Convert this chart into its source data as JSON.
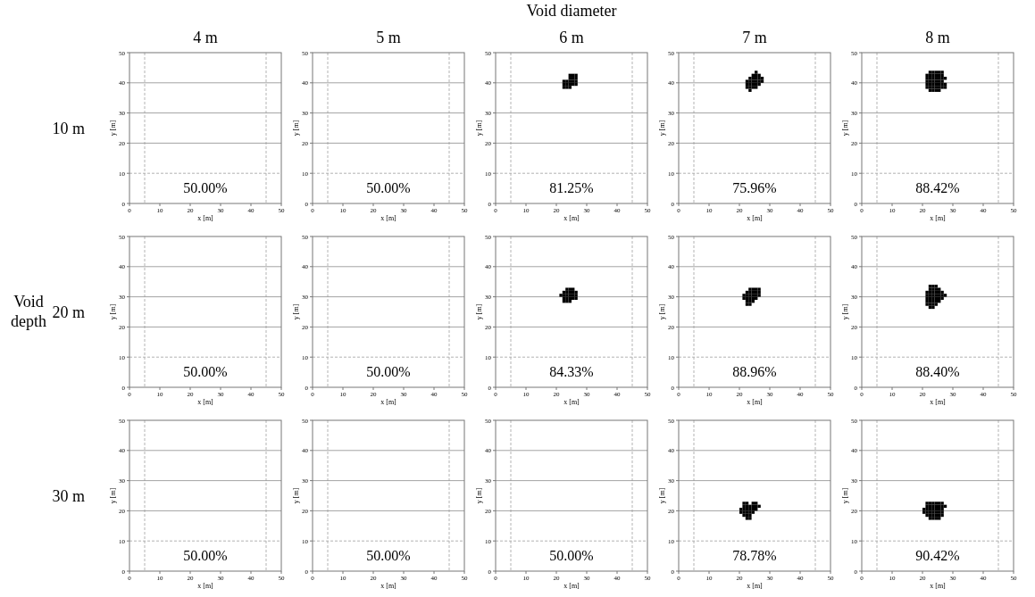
{
  "chart_data": [
    {
      "type": "scatter",
      "title": "4 m",
      "xlabel": "x [m]",
      "ylabel": "y [m]",
      "xlim": [
        0,
        50
      ],
      "ylim": [
        0,
        50
      ],
      "xticks": [
        0,
        10,
        20,
        30,
        40,
        50
      ],
      "yticks": [
        0,
        10,
        20,
        30,
        40,
        50
      ],
      "marker": "square",
      "annotations": [
        "50.00%",
        "10 m"
      ],
      "ref_lines": [
        {
          "axis": "x",
          "value": 5,
          "color": "#aaaaaa",
          "line_style": "dashed"
        },
        {
          "axis": "x",
          "value": 45,
          "color": "#aaaaaa",
          "line_style": "dashed"
        },
        {
          "axis": "y",
          "value": 10,
          "color": "#aaaaaa",
          "line_style": "dashed"
        },
        {
          "axis": "y",
          "value": 20,
          "color": "#999999",
          "line_style": "solid"
        },
        {
          "axis": "y",
          "value": 30,
          "color": "#999999",
          "line_style": "solid"
        },
        {
          "axis": "y",
          "value": 40,
          "color": "#999999",
          "line_style": "solid"
        }
      ]
    },
    {
      "type": "scatter",
      "title": "5 m",
      "xlabel": "x [m]",
      "ylabel": "y [m]",
      "xlim": [
        0,
        50
      ],
      "ylim": [
        0,
        50
      ],
      "xticks": [
        0,
        10,
        20,
        30,
        40,
        50
      ],
      "yticks": [
        0,
        10,
        20,
        30,
        40,
        50
      ],
      "marker": "square",
      "annotations": [
        "50.00%"
      ],
      "ref_lines": [
        {
          "axis": "x",
          "value": 5,
          "color": "#aaaaaa",
          "line_style": "dashed"
        },
        {
          "axis": "x",
          "value": 45,
          "color": "#aaaaaa",
          "line_style": "dashed"
        },
        {
          "axis": "y",
          "value": 10,
          "color": "#aaaaaa",
          "line_style": "dashed"
        },
        {
          "axis": "y",
          "value": 20,
          "color": "#999999",
          "line_style": "solid"
        },
        {
          "axis": "y",
          "value": 30,
          "color": "#999999",
          "line_style": "solid"
        },
        {
          "axis": "y",
          "value": 40,
          "color": "#999999",
          "line_style": "solid"
        }
      ]
    },
    {
      "type": "scatter",
      "title": "Void diameter",
      "subtitle": "6 m",
      "xlabel": "x [m]",
      "ylabel": "y [m]",
      "xlim": [
        0,
        50
      ],
      "ylim": [
        0,
        50
      ],
      "xticks": [
        0,
        10,
        20,
        30,
        40,
        50
      ],
      "yticks": [
        0,
        10,
        20,
        30,
        40,
        50
      ],
      "marker": "square",
      "annotations": [
        "81.25%"
      ],
      "ref_lines": [
        {
          "axis": "x",
          "value": 5,
          "color": "#aaaaaa",
          "line_style": "dashed"
        },
        {
          "axis": "x",
          "value": 45,
          "color": "#aaaaaa",
          "line_style": "dashed"
        },
        {
          "axis": "y",
          "value": 10,
          "color": "#aaaaaa",
          "line_style": "dashed"
        },
        {
          "axis": "y",
          "value": 20,
          "color": "#999999",
          "line_style": "solid"
        },
        {
          "axis": "y",
          "value": 30,
          "color": "#999999",
          "line_style": "solid"
        },
        {
          "axis": "y",
          "value": 40,
          "color": "#999999",
          "line_style": "solid"
        }
      ],
      "series": [
        {
          "color": "#000000",
          "x": [
            24.5,
            25.5,
            26.5,
            24.5,
            25.5,
            26.5,
            22.5,
            23.5,
            24.5,
            25.5,
            26.5,
            22.5,
            23.5,
            24.5,
            25.5,
            26.5,
            22.5,
            23.5,
            24.5
          ],
          "values": [
            42.5,
            42.5,
            42.5,
            41.5,
            41.5,
            41.5,
            40.5,
            40.5,
            40.5,
            40.5,
            40.5,
            39.5,
            39.5,
            39.5,
            39.5,
            39.5,
            38.5,
            38.5,
            38.5
          ]
        }
      ]
    },
    {
      "type": "scatter",
      "title": "7 m",
      "xlabel": "x [m]",
      "ylabel": "y [m]",
      "xlim": [
        0,
        50
      ],
      "ylim": [
        0,
        50
      ],
      "xticks": [
        0,
        10,
        20,
        30,
        40,
        50
      ],
      "yticks": [
        0,
        10,
        20,
        30,
        40,
        50
      ],
      "marker": "square",
      "annotations": [
        "75.96%"
      ],
      "ref_lines": [
        {
          "axis": "x",
          "value": 5,
          "color": "#aaaaaa",
          "line_style": "dashed"
        },
        {
          "axis": "x",
          "value": 45,
          "color": "#aaaaaa",
          "line_style": "dashed"
        },
        {
          "axis": "y",
          "value": 10,
          "color": "#aaaaaa",
          "line_style": "dashed"
        },
        {
          "axis": "y",
          "value": 20,
          "color": "#999999",
          "line_style": "solid"
        },
        {
          "axis": "y",
          "value": 30,
          "color": "#999999",
          "line_style": "solid"
        },
        {
          "axis": "y",
          "value": 40,
          "color": "#999999",
          "line_style": "solid"
        }
      ],
      "series": [
        {
          "color": "#000000",
          "x": [
            25.5,
            24.5,
            25.5,
            26.5,
            23.5,
            24.5,
            25.5,
            26.5,
            27.5,
            22.5,
            23.5,
            24.5,
            25.5,
            26.5,
            27.5,
            22.5,
            23.5,
            24.5,
            25.5,
            26.5,
            22.5,
            23.5,
            24.5,
            25.5,
            23.5
          ],
          "values": [
            43.5,
            42.5,
            42.5,
            42.5,
            41.5,
            41.5,
            41.5,
            41.5,
            41.5,
            40.5,
            40.5,
            40.5,
            40.5,
            40.5,
            40.5,
            39.5,
            39.5,
            39.5,
            39.5,
            39.5,
            38.5,
            38.5,
            38.5,
            38.5,
            37.5
          ]
        }
      ]
    },
    {
      "type": "scatter",
      "title": "8 m",
      "xlabel": "x [m]",
      "ylabel": "y [m]",
      "xlim": [
        0,
        50
      ],
      "ylim": [
        0,
        50
      ],
      "xticks": [
        0,
        10,
        20,
        30,
        40,
        50
      ],
      "yticks": [
        0,
        10,
        20,
        30,
        40,
        50
      ],
      "marker": "square",
      "annotations": [
        "88.42%"
      ],
      "ref_lines": [
        {
          "axis": "x",
          "value": 5,
          "color": "#aaaaaa",
          "line_style": "dashed"
        },
        {
          "axis": "x",
          "value": 45,
          "color": "#aaaaaa",
          "line_style": "dashed"
        },
        {
          "axis": "y",
          "value": 10,
          "color": "#aaaaaa",
          "line_style": "dashed"
        },
        {
          "axis": "y",
          "value": 20,
          "color": "#999999",
          "line_style": "solid"
        },
        {
          "axis": "y",
          "value": 30,
          "color": "#999999",
          "line_style": "solid"
        },
        {
          "axis": "y",
          "value": 40,
          "color": "#999999",
          "line_style": "solid"
        }
      ],
      "series": [
        {
          "color": "#000000",
          "x": [
            22.5,
            23.5,
            24.5,
            25.5,
            26.5,
            21.5,
            22.5,
            23.5,
            24.5,
            25.5,
            26.5,
            21.5,
            22.5,
            23.5,
            24.5,
            25.5,
            26.5,
            27.5,
            21.5,
            22.5,
            23.5,
            24.5,
            25.5,
            26.5,
            21.5,
            22.5,
            23.5,
            24.5,
            25.5,
            26.5,
            27.5,
            21.5,
            22.5,
            23.5,
            24.5,
            25.5,
            26.5,
            27.5,
            22.5,
            23.5,
            24.5,
            25.5
          ],
          "values": [
            43.5,
            43.5,
            43.5,
            43.5,
            43.5,
            42.5,
            42.5,
            42.5,
            42.5,
            42.5,
            42.5,
            41.5,
            41.5,
            41.5,
            41.5,
            41.5,
            41.5,
            41.5,
            40.5,
            40.5,
            40.5,
            40.5,
            40.5,
            40.5,
            39.5,
            39.5,
            39.5,
            39.5,
            39.5,
            39.5,
            39.5,
            38.5,
            38.5,
            38.5,
            38.5,
            38.5,
            38.5,
            38.5,
            37.5,
            37.5,
            37.5,
            37.5
          ]
        }
      ]
    },
    {
      "type": "scatter",
      "xlabel": "x [m]",
      "ylabel": "y [m]",
      "xlim": [
        0,
        50
      ],
      "ylim": [
        0,
        50
      ],
      "xticks": [
        0,
        10,
        20,
        30,
        40,
        50
      ],
      "yticks": [
        0,
        10,
        20,
        30,
        40,
        50
      ],
      "marker": "square",
      "annotations": [
        "50.00%",
        "Void depth",
        "20 m"
      ],
      "ref_lines": [
        {
          "axis": "x",
          "value": 5,
          "color": "#aaaaaa",
          "line_style": "dashed"
        },
        {
          "axis": "x",
          "value": 45,
          "color": "#aaaaaa",
          "line_style": "dashed"
        },
        {
          "axis": "y",
          "value": 10,
          "color": "#aaaaaa",
          "line_style": "dashed"
        },
        {
          "axis": "y",
          "value": 20,
          "color": "#999999",
          "line_style": "solid"
        },
        {
          "axis": "y",
          "value": 30,
          "color": "#999999",
          "line_style": "solid"
        },
        {
          "axis": "y",
          "value": 40,
          "color": "#999999",
          "line_style": "solid"
        }
      ]
    },
    {
      "type": "scatter",
      "xlabel": "x [m]",
      "ylabel": "y [m]",
      "xlim": [
        0,
        50
      ],
      "ylim": [
        0,
        50
      ],
      "xticks": [
        0,
        10,
        20,
        30,
        40,
        50
      ],
      "yticks": [
        0,
        10,
        20,
        30,
        40,
        50
      ],
      "marker": "square",
      "annotations": [
        "50.00%"
      ],
      "ref_lines": [
        {
          "axis": "x",
          "value": 5,
          "color": "#aaaaaa",
          "line_style": "dashed"
        },
        {
          "axis": "x",
          "value": 45,
          "color": "#aaaaaa",
          "line_style": "dashed"
        },
        {
          "axis": "y",
          "value": 10,
          "color": "#aaaaaa",
          "line_style": "dashed"
        },
        {
          "axis": "y",
          "value": 20,
          "color": "#999999",
          "line_style": "solid"
        },
        {
          "axis": "y",
          "value": 30,
          "color": "#999999",
          "line_style": "solid"
        },
        {
          "axis": "y",
          "value": 40,
          "color": "#999999",
          "line_style": "solid"
        }
      ]
    },
    {
      "type": "scatter",
      "xlabel": "x [m]",
      "ylabel": "y [m]",
      "xlim": [
        0,
        50
      ],
      "ylim": [
        0,
        50
      ],
      "xticks": [
        0,
        10,
        20,
        30,
        40,
        50
      ],
      "yticks": [
        0,
        10,
        20,
        30,
        40,
        50
      ],
      "marker": "square",
      "annotations": [
        "84.33%"
      ],
      "ref_lines": [
        {
          "axis": "x",
          "value": 5,
          "color": "#aaaaaa",
          "line_style": "dashed"
        },
        {
          "axis": "x",
          "value": 45,
          "color": "#aaaaaa",
          "line_style": "dashed"
        },
        {
          "axis": "y",
          "value": 10,
          "color": "#aaaaaa",
          "line_style": "dashed"
        },
        {
          "axis": "y",
          "value": 20,
          "color": "#999999",
          "line_style": "solid"
        },
        {
          "axis": "y",
          "value": 30,
          "color": "#999999",
          "line_style": "solid"
        },
        {
          "axis": "y",
          "value": 40,
          "color": "#999999",
          "line_style": "solid"
        }
      ],
      "series": [
        {
          "color": "#000000",
          "x": [
            23.5,
            24.5,
            25.5,
            22.5,
            23.5,
            24.5,
            25.5,
            26.5,
            21.5,
            22.5,
            23.5,
            24.5,
            25.5,
            26.5,
            22.5,
            23.5,
            24.5,
            25.5,
            26.5,
            22.5,
            23.5,
            24.5
          ],
          "values": [
            32.5,
            32.5,
            32.5,
            31.5,
            31.5,
            31.5,
            31.5,
            31.5,
            30.5,
            30.5,
            30.5,
            30.5,
            30.5,
            30.5,
            29.5,
            29.5,
            29.5,
            29.5,
            29.5,
            28.5,
            28.5,
            28.5
          ]
        }
      ]
    },
    {
      "type": "scatter",
      "xlabel": "x [m]",
      "ylabel": "y [m]",
      "xlim": [
        0,
        50
      ],
      "ylim": [
        0,
        50
      ],
      "xticks": [
        0,
        10,
        20,
        30,
        40,
        50
      ],
      "yticks": [
        0,
        10,
        20,
        30,
        40,
        50
      ],
      "marker": "square",
      "annotations": [
        "88.96%"
      ],
      "ref_lines": [
        {
          "axis": "x",
          "value": 5,
          "color": "#aaaaaa",
          "line_style": "dashed"
        },
        {
          "axis": "x",
          "value": 45,
          "color": "#aaaaaa",
          "line_style": "dashed"
        },
        {
          "axis": "y",
          "value": 10,
          "color": "#aaaaaa",
          "line_style": "dashed"
        },
        {
          "axis": "y",
          "value": 20,
          "color": "#999999",
          "line_style": "solid"
        },
        {
          "axis": "y",
          "value": 30,
          "color": "#999999",
          "line_style": "solid"
        },
        {
          "axis": "y",
          "value": 40,
          "color": "#999999",
          "line_style": "solid"
        }
      ],
      "series": [
        {
          "color": "#000000",
          "x": [
            23.5,
            24.5,
            25.5,
            26.5,
            22.5,
            23.5,
            24.5,
            25.5,
            26.5,
            21.5,
            22.5,
            23.5,
            24.5,
            25.5,
            26.5,
            21.5,
            22.5,
            23.5,
            24.5,
            25.5,
            22.5,
            23.5,
            24.5,
            22.5,
            23.5
          ],
          "values": [
            32.5,
            32.5,
            32.5,
            32.5,
            31.5,
            31.5,
            31.5,
            31.5,
            31.5,
            30.5,
            30.5,
            30.5,
            30.5,
            30.5,
            30.5,
            29.5,
            29.5,
            29.5,
            29.5,
            29.5,
            28.5,
            28.5,
            28.5,
            27.5,
            27.5
          ]
        }
      ]
    },
    {
      "type": "scatter",
      "xlabel": "x [m]",
      "ylabel": "y [m]",
      "xlim": [
        0,
        50
      ],
      "ylim": [
        0,
        50
      ],
      "xticks": [
        0,
        10,
        20,
        30,
        40,
        50
      ],
      "yticks": [
        0,
        10,
        20,
        30,
        40,
        50
      ],
      "marker": "square",
      "annotations": [
        "88.40%"
      ],
      "ref_lines": [
        {
          "axis": "x",
          "value": 5,
          "color": "#aaaaaa",
          "line_style": "dashed"
        },
        {
          "axis": "x",
          "value": 45,
          "color": "#aaaaaa",
          "line_style": "dashed"
        },
        {
          "axis": "y",
          "value": 10,
          "color": "#aaaaaa",
          "line_style": "dashed"
        },
        {
          "axis": "y",
          "value": 20,
          "color": "#999999",
          "line_style": "solid"
        },
        {
          "axis": "y",
          "value": 30,
          "color": "#999999",
          "line_style": "solid"
        },
        {
          "axis": "y",
          "value": 40,
          "color": "#999999",
          "line_style": "solid"
        }
      ],
      "series": [
        {
          "color": "#000000",
          "x": [
            22.5,
            23.5,
            24.5,
            22.5,
            23.5,
            24.5,
            25.5,
            21.5,
            22.5,
            23.5,
            24.5,
            25.5,
            26.5,
            21.5,
            22.5,
            23.5,
            24.5,
            25.5,
            26.5,
            27.5,
            21.5,
            22.5,
            23.5,
            24.5,
            25.5,
            26.5,
            21.5,
            22.5,
            23.5,
            24.5,
            25.5,
            21.5,
            22.5,
            23.5,
            24.5,
            22.5,
            23.5
          ],
          "values": [
            33.5,
            33.5,
            33.5,
            32.5,
            32.5,
            32.5,
            32.5,
            31.5,
            31.5,
            31.5,
            31.5,
            31.5,
            31.5,
            30.5,
            30.5,
            30.5,
            30.5,
            30.5,
            30.5,
            30.5,
            29.5,
            29.5,
            29.5,
            29.5,
            29.5,
            29.5,
            28.5,
            28.5,
            28.5,
            28.5,
            28.5,
            27.5,
            27.5,
            27.5,
            27.5,
            26.5,
            26.5
          ]
        }
      ]
    },
    {
      "type": "scatter",
      "xlabel": "x [m]",
      "ylabel": "y [m]",
      "xlim": [
        0,
        50
      ],
      "ylim": [
        0,
        50
      ],
      "xticks": [
        0,
        10,
        20,
        30,
        40,
        50
      ],
      "yticks": [
        0,
        10,
        20,
        30,
        40,
        50
      ],
      "marker": "square",
      "annotations": [
        "50.00%",
        "30 m"
      ],
      "ref_lines": [
        {
          "axis": "x",
          "value": 5,
          "color": "#aaaaaa",
          "line_style": "dashed"
        },
        {
          "axis": "x",
          "value": 45,
          "color": "#aaaaaa",
          "line_style": "dashed"
        },
        {
          "axis": "y",
          "value": 10,
          "color": "#aaaaaa",
          "line_style": "dashed"
        },
        {
          "axis": "y",
          "value": 20,
          "color": "#999999",
          "line_style": "solid"
        },
        {
          "axis": "y",
          "value": 30,
          "color": "#999999",
          "line_style": "solid"
        },
        {
          "axis": "y",
          "value": 40,
          "color": "#999999",
          "line_style": "solid"
        }
      ]
    },
    {
      "type": "scatter",
      "xlabel": "x [m]",
      "ylabel": "y [m]",
      "xlim": [
        0,
        50
      ],
      "ylim": [
        0,
        50
      ],
      "xticks": [
        0,
        10,
        20,
        30,
        40,
        50
      ],
      "yticks": [
        0,
        10,
        20,
        30,
        40,
        50
      ],
      "marker": "square",
      "annotations": [
        "50.00%"
      ],
      "ref_lines": [
        {
          "axis": "x",
          "value": 5,
          "color": "#aaaaaa",
          "line_style": "dashed"
        },
        {
          "axis": "x",
          "value": 45,
          "color": "#aaaaaa",
          "line_style": "dashed"
        },
        {
          "axis": "y",
          "value": 10,
          "color": "#aaaaaa",
          "line_style": "dashed"
        },
        {
          "axis": "y",
          "value": 20,
          "color": "#999999",
          "line_style": "solid"
        },
        {
          "axis": "y",
          "value": 30,
          "color": "#999999",
          "line_style": "solid"
        },
        {
          "axis": "y",
          "value": 40,
          "color": "#999999",
          "line_style": "solid"
        }
      ]
    },
    {
      "type": "scatter",
      "xlabel": "x [m]",
      "ylabel": "y [m]",
      "xlim": [
        0,
        50
      ],
      "ylim": [
        0,
        50
      ],
      "xticks": [
        0,
        10,
        20,
        30,
        40,
        50
      ],
      "yticks": [
        0,
        10,
        20,
        30,
        40,
        50
      ],
      "marker": "square",
      "annotations": [
        "50.00%"
      ],
      "ref_lines": [
        {
          "axis": "x",
          "value": 5,
          "color": "#aaaaaa",
          "line_style": "dashed"
        },
        {
          "axis": "x",
          "value": 45,
          "color": "#aaaaaa",
          "line_style": "dashed"
        },
        {
          "axis": "y",
          "value": 10,
          "color": "#aaaaaa",
          "line_style": "dashed"
        },
        {
          "axis": "y",
          "value": 20,
          "color": "#999999",
          "line_style": "solid"
        },
        {
          "axis": "y",
          "value": 30,
          "color": "#999999",
          "line_style": "solid"
        },
        {
          "axis": "y",
          "value": 40,
          "color": "#999999",
          "line_style": "solid"
        }
      ]
    },
    {
      "type": "scatter",
      "xlabel": "x [m]",
      "ylabel": "y [m]",
      "xlim": [
        0,
        50
      ],
      "ylim": [
        0,
        50
      ],
      "xticks": [
        0,
        10,
        20,
        30,
        40,
        50
      ],
      "yticks": [
        0,
        10,
        20,
        30,
        40,
        50
      ],
      "marker": "square",
      "annotations": [
        "78.78%"
      ],
      "ref_lines": [
        {
          "axis": "x",
          "value": 5,
          "color": "#aaaaaa",
          "line_style": "dashed"
        },
        {
          "axis": "x",
          "value": 45,
          "color": "#aaaaaa",
          "line_style": "dashed"
        },
        {
          "axis": "y",
          "value": 10,
          "color": "#aaaaaa",
          "line_style": "dashed"
        },
        {
          "axis": "y",
          "value": 20,
          "color": "#999999",
          "line_style": "solid"
        },
        {
          "axis": "y",
          "value": 30,
          "color": "#999999",
          "line_style": "solid"
        },
        {
          "axis": "y",
          "value": 40,
          "color": "#999999",
          "line_style": "solid"
        }
      ],
      "series": [
        {
          "color": "#000000",
          "x": [
            21.5,
            22.5,
            24.5,
            25.5,
            21.5,
            22.5,
            23.5,
            24.5,
            25.5,
            26.5,
            20.5,
            21.5,
            22.5,
            23.5,
            24.5,
            25.5,
            20.5,
            21.5,
            22.5,
            23.5,
            24.5,
            21.5,
            22.5,
            23.5,
            22.5,
            23.5
          ],
          "values": [
            22.5,
            22.5,
            22.5,
            22.5,
            21.5,
            21.5,
            21.5,
            21.5,
            21.5,
            21.5,
            20.5,
            20.5,
            20.5,
            20.5,
            20.5,
            20.5,
            19.5,
            19.5,
            19.5,
            19.5,
            19.5,
            18.5,
            18.5,
            18.5,
            17.5,
            17.5
          ]
        }
      ]
    },
    {
      "type": "scatter",
      "xlabel": "x [m]",
      "ylabel": "y [m]",
      "xlim": [
        0,
        50
      ],
      "ylim": [
        0,
        50
      ],
      "xticks": [
        0,
        10,
        20,
        30,
        40,
        50
      ],
      "yticks": [
        0,
        10,
        20,
        30,
        40,
        50
      ],
      "marker": "square",
      "annotations": [
        "90.42%"
      ],
      "ref_lines": [
        {
          "axis": "x",
          "value": 5,
          "color": "#aaaaaa",
          "line_style": "dashed"
        },
        {
          "axis": "x",
          "value": 45,
          "color": "#aaaaaa",
          "line_style": "dashed"
        },
        {
          "axis": "y",
          "value": 10,
          "color": "#aaaaaa",
          "line_style": "dashed"
        },
        {
          "axis": "y",
          "value": 20,
          "color": "#999999",
          "line_style": "solid"
        },
        {
          "axis": "y",
          "value": 30,
          "color": "#999999",
          "line_style": "solid"
        },
        {
          "axis": "y",
          "value": 40,
          "color": "#999999",
          "line_style": "solid"
        }
      ],
      "series": [
        {
          "color": "#000000",
          "x": [
            21.5,
            22.5,
            23.5,
            24.5,
            25.5,
            26.5,
            21.5,
            22.5,
            23.5,
            24.5,
            25.5,
            26.5,
            27.5,
            20.5,
            21.5,
            22.5,
            23.5,
            24.5,
            25.5,
            26.5,
            20.5,
            21.5,
            22.5,
            23.5,
            24.5,
            25.5,
            26.5,
            21.5,
            22.5,
            23.5,
            24.5,
            25.5,
            26.5,
            22.5,
            23.5,
            24.5,
            25.5
          ],
          "values": [
            22.5,
            22.5,
            22.5,
            22.5,
            22.5,
            22.5,
            21.5,
            21.5,
            21.5,
            21.5,
            21.5,
            21.5,
            21.5,
            20.5,
            20.5,
            20.5,
            20.5,
            20.5,
            20.5,
            20.5,
            19.5,
            19.5,
            19.5,
            19.5,
            19.5,
            19.5,
            19.5,
            18.5,
            18.5,
            18.5,
            18.5,
            18.5,
            18.5,
            17.5,
            17.5,
            17.5,
            17.5
          ]
        }
      ]
    }
  ]
}
